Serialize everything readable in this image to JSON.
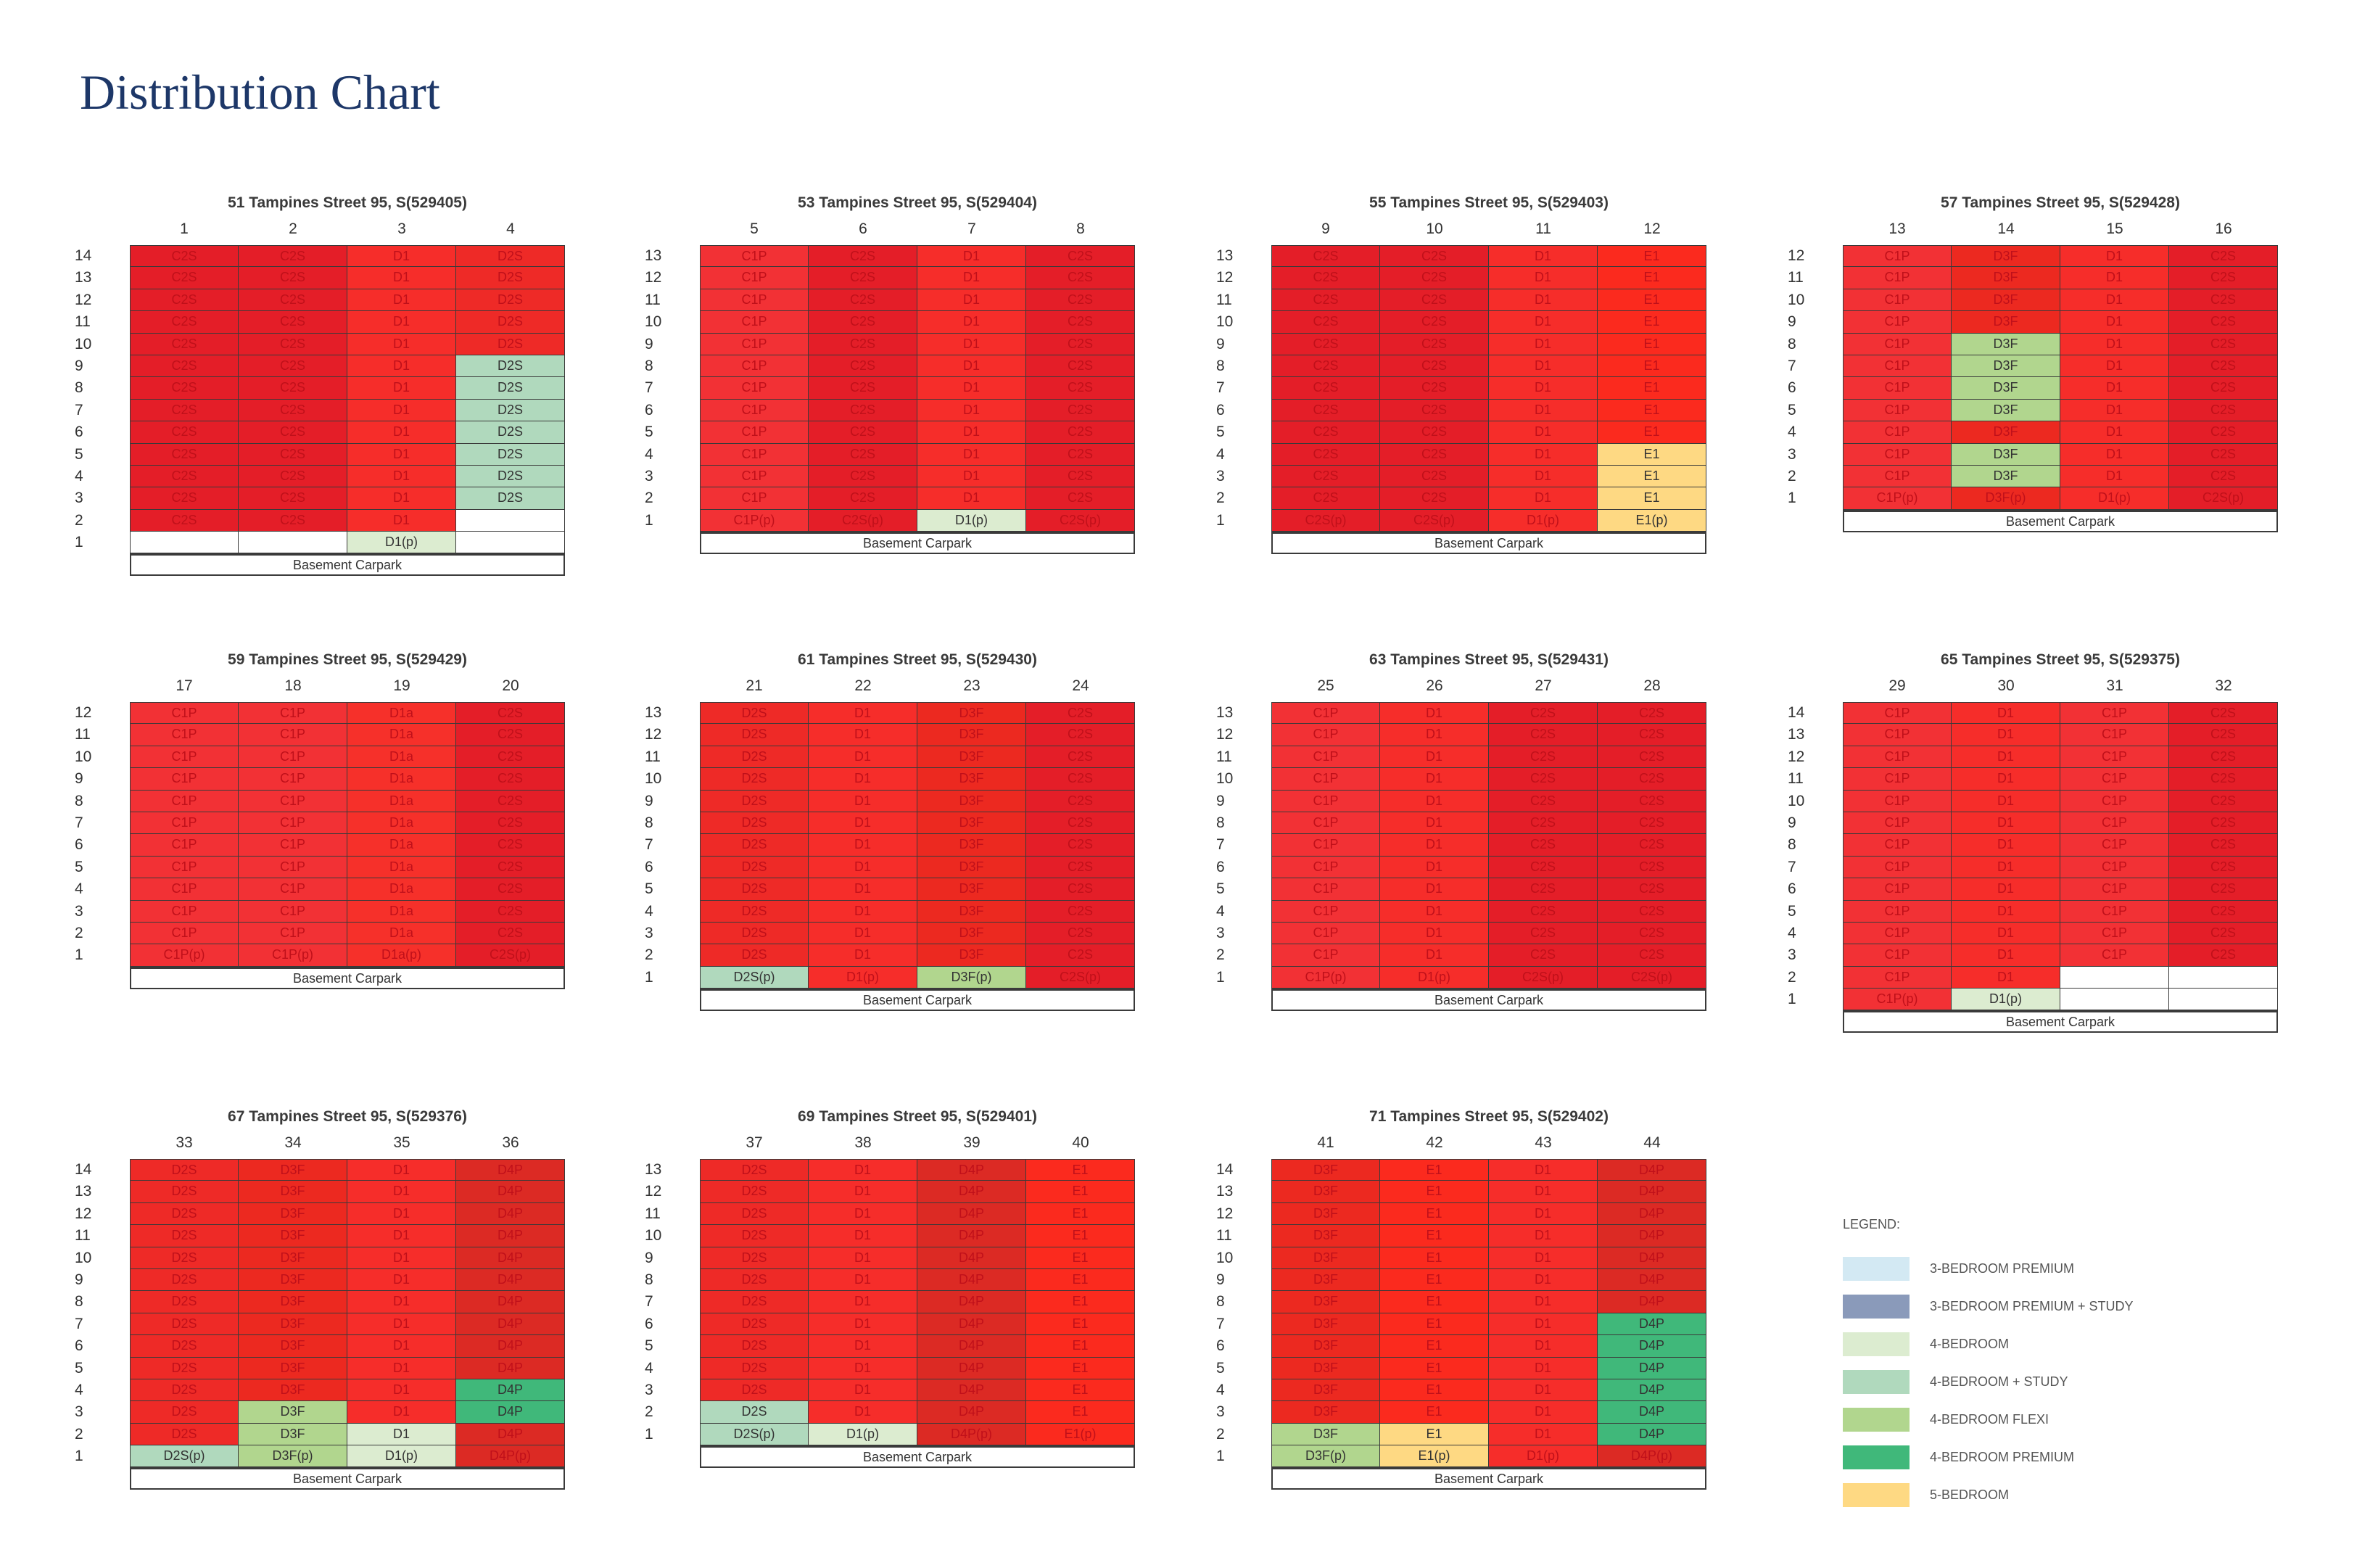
{
  "title": "Distribution Chart",
  "chart_data": {
    "type": "table",
    "title": "Distribution Chart",
    "basement_label": "Basement Carpark",
    "legend_title": "LEGEND:",
    "legend": [
      {
        "code": "C1P",
        "label": "3-BEDROOM PREMIUM",
        "color": "#d3e9f3"
      },
      {
        "code": "C2S",
        "label": "3-BEDROOM PREMIUM + STUDY",
        "color": "#8a9aba"
      },
      {
        "code": "D1",
        "label": "4-BEDROOM",
        "color": "#dcecd0"
      },
      {
        "code": "D2S",
        "label": "4-BEDROOM + STUDY",
        "color": "#b0d9bd"
      },
      {
        "code": "D3F",
        "label": "4-BEDROOM FLEXI",
        "color": "#b1d68e"
      },
      {
        "code": "D4P",
        "label": "4-BEDROOM PREMIUM",
        "color": "#40b87a"
      },
      {
        "code": "E1",
        "label": "5-BEDROOM",
        "color": "#fed983"
      }
    ],
    "sold_colors": {
      "C1P": "#f23135",
      "C2S": "#e41e28",
      "D1": "#f62d2a",
      "D1a": "#f6302a",
      "D2S": "#ee2a27",
      "D3F": "#ec2920",
      "D4P": "#dc2a24",
      "E1": "#fb2a1e"
    },
    "blocks": [
      {
        "title": "51 Tampines Street 95, S(529405)",
        "floors": 14,
        "columns": [
          {
            "unit": "1",
            "type": "C2S",
            "avail": [],
            "empty": [
              1
            ],
            "ground": ""
          },
          {
            "unit": "2",
            "type": "C2S",
            "avail": [],
            "empty": [
              1
            ],
            "ground": ""
          },
          {
            "unit": "3",
            "type": "D1",
            "avail": [
              1
            ],
            "empty": [],
            "ground": "D1(p)"
          },
          {
            "unit": "4",
            "type": "D2S",
            "avail": [
              9,
              8,
              7,
              6,
              5,
              4,
              3
            ],
            "empty": [
              2,
              1
            ],
            "ground": ""
          }
        ]
      },
      {
        "title": "53 Tampines Street 95, S(529404)",
        "floors": 13,
        "columns": [
          {
            "unit": "5",
            "type": "C1P",
            "avail": [],
            "empty": [],
            "ground": "C1P(p)"
          },
          {
            "unit": "6",
            "type": "C2S",
            "avail": [],
            "empty": [],
            "ground": "C2S(p)"
          },
          {
            "unit": "7",
            "type": "D1",
            "avail": [
              1
            ],
            "empty": [],
            "ground": "D1(p)"
          },
          {
            "unit": "8",
            "type": "C2S",
            "avail": [],
            "empty": [],
            "ground": "C2S(p)"
          }
        ]
      },
      {
        "title": "55 Tampines Street 95, S(529403)",
        "floors": 13,
        "columns": [
          {
            "unit": "9",
            "type": "C2S",
            "avail": [],
            "empty": [],
            "ground": "C2S(p)"
          },
          {
            "unit": "10",
            "type": "C2S",
            "avail": [],
            "empty": [],
            "ground": "C2S(p)"
          },
          {
            "unit": "11",
            "type": "D1",
            "avail": [],
            "empty": [],
            "ground": "D1(p)"
          },
          {
            "unit": "12",
            "type": "E1",
            "avail": [
              4,
              3,
              2,
              1
            ],
            "empty": [],
            "ground": "E1(p)"
          }
        ]
      },
      {
        "title": "57 Tampines Street 95, S(529428)",
        "floors": 12,
        "columns": [
          {
            "unit": "13",
            "type": "C1P",
            "avail": [],
            "empty": [],
            "ground": "C1P(p)"
          },
          {
            "unit": "14",
            "type": "D3F",
            "avail": [
              8,
              7,
              6,
              5,
              3,
              2
            ],
            "empty": [],
            "ground": "D3F(p)"
          },
          {
            "unit": "15",
            "type": "D1",
            "avail": [],
            "empty": [],
            "ground": "D1(p)"
          },
          {
            "unit": "16",
            "type": "C2S",
            "avail": [],
            "empty": [],
            "ground": "C2S(p)"
          }
        ]
      },
      {
        "title": "59 Tampines Street 95, S(529429)",
        "floors": 12,
        "columns": [
          {
            "unit": "17",
            "type": "C1P",
            "avail": [],
            "empty": [],
            "ground": "C1P(p)"
          },
          {
            "unit": "18",
            "type": "C1P",
            "avail": [],
            "empty": [],
            "ground": "C1P(p)"
          },
          {
            "unit": "19",
            "type": "D1a",
            "avail": [],
            "empty": [],
            "ground": "D1a(p)"
          },
          {
            "unit": "20",
            "type": "C2S",
            "avail": [],
            "empty": [],
            "ground": "C2S(p)"
          }
        ]
      },
      {
        "title": "61 Tampines Street 95, S(529430)",
        "floors": 13,
        "columns": [
          {
            "unit": "21",
            "type": "D2S",
            "avail": [
              1
            ],
            "empty": [],
            "ground": "D2S(p)"
          },
          {
            "unit": "22",
            "type": "D1",
            "avail": [],
            "empty": [],
            "ground": "D1(p)"
          },
          {
            "unit": "23",
            "type": "D3F",
            "avail": [
              1
            ],
            "empty": [],
            "ground": "D3F(p)"
          },
          {
            "unit": "24",
            "type": "C2S",
            "avail": [],
            "empty": [],
            "ground": "C2S(p)"
          }
        ]
      },
      {
        "title": "63 Tampines Street 95, S(529431)",
        "floors": 13,
        "columns": [
          {
            "unit": "25",
            "type": "C1P",
            "avail": [],
            "empty": [],
            "ground": "C1P(p)"
          },
          {
            "unit": "26",
            "type": "D1",
            "avail": [],
            "empty": [],
            "ground": "D1(p)"
          },
          {
            "unit": "27",
            "type": "C2S",
            "avail": [],
            "empty": [],
            "ground": "C2S(p)"
          },
          {
            "unit": "28",
            "type": "C2S",
            "avail": [],
            "empty": [],
            "ground": "C2S(p)"
          }
        ]
      },
      {
        "title": "65 Tampines Street 95, S(529375)",
        "floors": 14,
        "columns": [
          {
            "unit": "29",
            "type": "C1P",
            "avail": [],
            "empty": [],
            "ground": "C1P(p)"
          },
          {
            "unit": "30",
            "type": "D1",
            "avail": [
              1
            ],
            "empty": [],
            "ground": "D1(p)"
          },
          {
            "unit": "31",
            "type": "C1P",
            "avail": [],
            "empty": [
              2,
              1
            ],
            "ground": ""
          },
          {
            "unit": "32",
            "type": "C2S",
            "avail": [],
            "empty": [
              2,
              1
            ],
            "ground": ""
          }
        ]
      },
      {
        "title": "67 Tampines Street 95, S(529376)",
        "floors": 14,
        "columns": [
          {
            "unit": "33",
            "type": "D2S",
            "avail": [
              1
            ],
            "empty": [],
            "ground": "D2S(p)"
          },
          {
            "unit": "34",
            "type": "D3F",
            "avail": [
              3,
              2,
              1
            ],
            "empty": [],
            "ground": "D3F(p)"
          },
          {
            "unit": "35",
            "type": "D1",
            "avail": [
              2,
              1
            ],
            "empty": [],
            "ground": "D1(p)"
          },
          {
            "unit": "36",
            "type": "D4P",
            "avail": [
              4,
              3
            ],
            "empty": [],
            "ground": "D4P(p)"
          }
        ]
      },
      {
        "title": "69 Tampines Street 95, S(529401)",
        "floors": 13,
        "columns": [
          {
            "unit": "37",
            "type": "D2S",
            "avail": [
              2,
              1
            ],
            "empty": [],
            "ground": "D2S(p)"
          },
          {
            "unit": "38",
            "type": "D1",
            "avail": [
              1
            ],
            "empty": [],
            "ground": "D1(p)"
          },
          {
            "unit": "39",
            "type": "D4P",
            "avail": [],
            "empty": [],
            "ground": "D4P(p)"
          },
          {
            "unit": "40",
            "type": "E1",
            "avail": [],
            "empty": [],
            "ground": "E1(p)"
          }
        ]
      },
      {
        "title": "71 Tampines Street 95, S(529402)",
        "floors": 14,
        "columns": [
          {
            "unit": "41",
            "type": "D3F",
            "avail": [
              2,
              1
            ],
            "empty": [],
            "ground": "D3F(p)"
          },
          {
            "unit": "42",
            "type": "E1",
            "avail": [
              2,
              1
            ],
            "empty": [],
            "ground": "E1(p)"
          },
          {
            "unit": "43",
            "type": "D1",
            "avail": [],
            "empty": [],
            "ground": "D1(p)"
          },
          {
            "unit": "44",
            "type": "D4P",
            "avail": [
              7,
              6,
              5,
              4,
              3,
              2
            ],
            "empty": [],
            "ground": "D4P(p)"
          }
        ]
      }
    ]
  }
}
